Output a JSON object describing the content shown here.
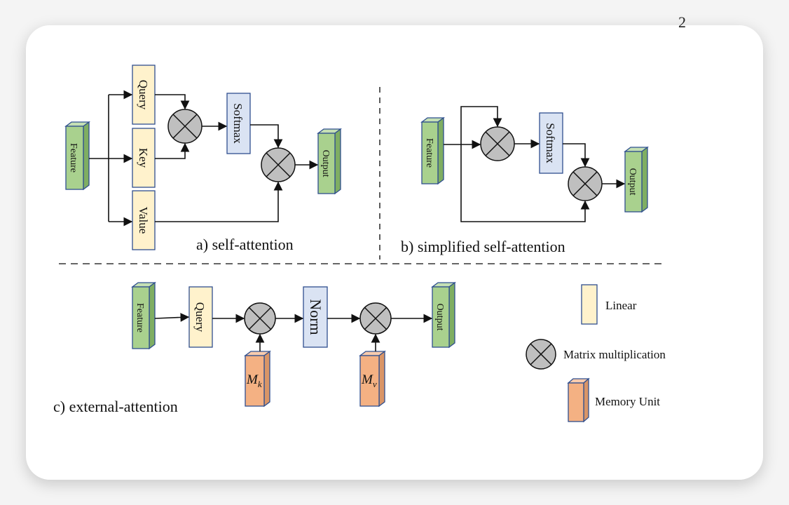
{
  "stray_mark": "2",
  "panel_a": {
    "caption": "a) self-attention",
    "feature": "Feature",
    "query": "Query",
    "key": "Key",
    "value": "Value",
    "softmax": "Softmax",
    "output": "Output"
  },
  "panel_b": {
    "caption": "b) simplified self-attention",
    "feature": "Feature",
    "softmax": "Softmax",
    "output": "Output"
  },
  "panel_c": {
    "caption": "c) external-attention",
    "feature": "Feature",
    "query": "Query",
    "norm": "Norm",
    "output": "Output",
    "mk_base": "M",
    "mk_sub": "k",
    "mv_base": "M",
    "mv_sub": "v"
  },
  "legend": {
    "linear": "Linear",
    "matmul": "Matrix multiplication",
    "memory": "Memory Unit"
  },
  "colors": {
    "feature_green": "#a9d18e",
    "feature_green_side": "#7fae62",
    "linear_yellow": "#fff2cc",
    "softmax_blue": "#dae3f3",
    "memory_orange": "#f4b183",
    "memory_orange_side": "#d99567",
    "circle_gray": "#bfbfbf",
    "box_border": "#2f4f8f"
  }
}
